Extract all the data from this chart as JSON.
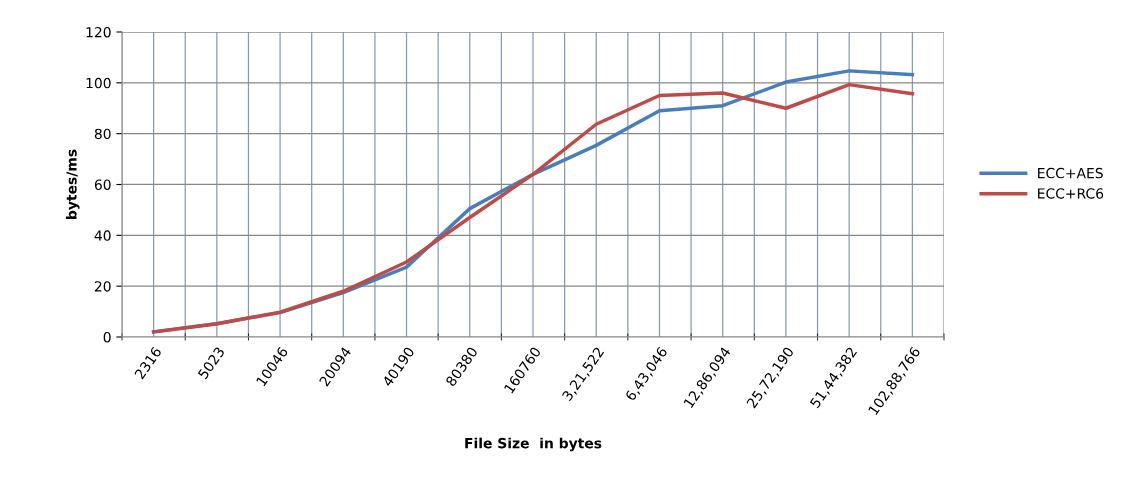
{
  "chart_data": {
    "type": "line",
    "xlabel": "File Size  in bytes",
    "ylabel": "bytes/ms",
    "categories": [
      "2316",
      "5023",
      "10046",
      "20094",
      "40190",
      "80380",
      "160760",
      "3,21,522",
      "6,43,046",
      "12,86,094",
      "25,72,190",
      "51,44,382",
      "102,88,766"
    ],
    "series": [
      {
        "name": "ECC+AES",
        "color": "#4a7ebb",
        "values": [
          2,
          5.2,
          9.6,
          17.5,
          27.5,
          50.5,
          64,
          75.4,
          89,
          91,
          100.3,
          104.7,
          103.2
        ]
      },
      {
        "name": "ECC+RC6",
        "color": "#be4b48",
        "values": [
          2,
          5.2,
          9.8,
          18,
          29.5,
          47,
          64,
          83.7,
          95,
          96,
          90,
          99.3,
          95.7
        ]
      }
    ],
    "ylim": [
      0,
      120
    ],
    "yticks": [
      0,
      20,
      40,
      60,
      80,
      100,
      120
    ],
    "grid": true,
    "legend": "right",
    "marker": "none",
    "line_style": "solid"
  }
}
